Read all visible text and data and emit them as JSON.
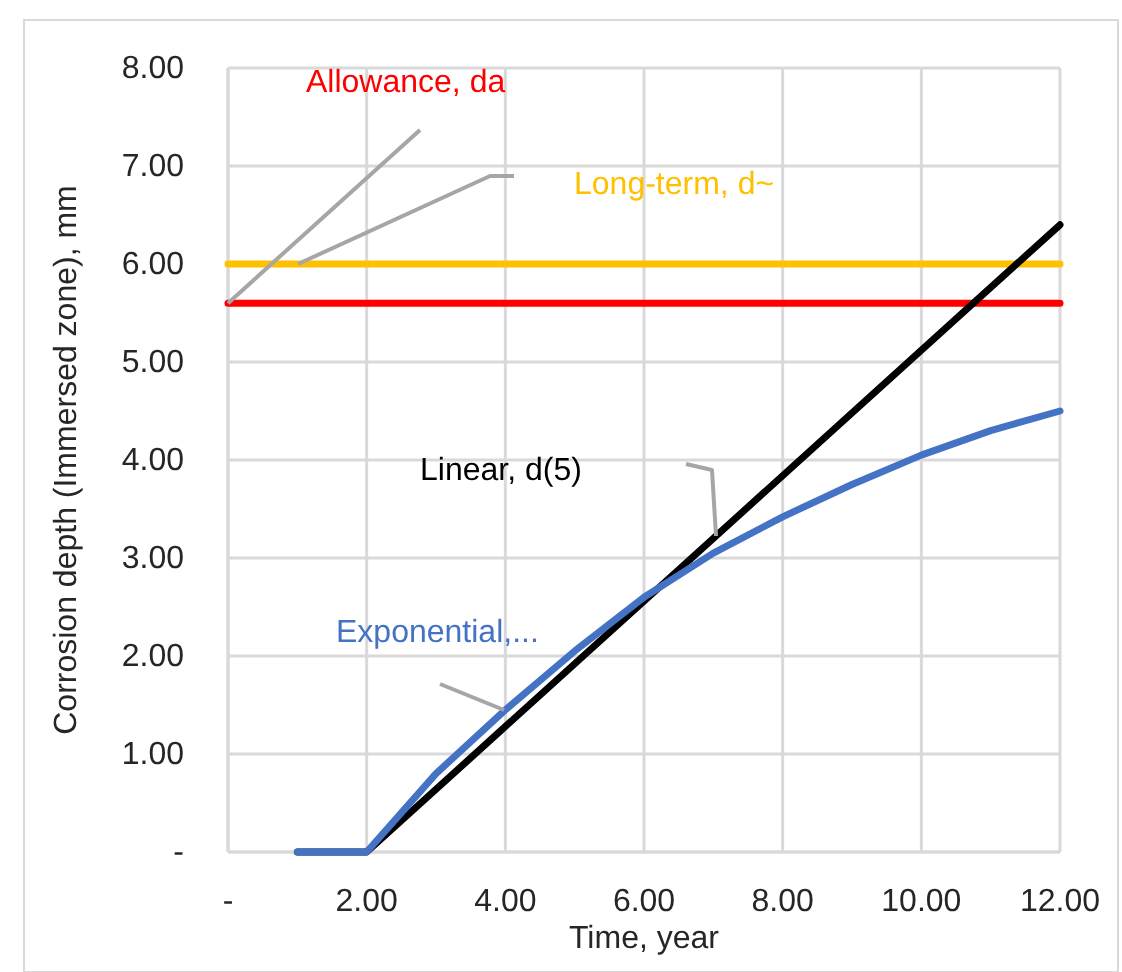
{
  "chart_data": {
    "type": "line",
    "xlabel": "Time, year",
    "ylabel": "Corrosion depth (Immersed zone), mm",
    "xlim": [
      0,
      12
    ],
    "ylim": [
      0,
      8
    ],
    "xticks": [
      {
        "value": 0,
        "label": "-"
      },
      {
        "value": 2,
        "label": "2.00"
      },
      {
        "value": 4,
        "label": "4.00"
      },
      {
        "value": 6,
        "label": "6.00"
      },
      {
        "value": 8,
        "label": "8.00"
      },
      {
        "value": 10,
        "label": "10.00"
      },
      {
        "value": 12,
        "label": "12.00"
      }
    ],
    "yticks": [
      {
        "value": 0,
        "label": "-"
      },
      {
        "value": 1,
        "label": "1.00"
      },
      {
        "value": 2,
        "label": "2.00"
      },
      {
        "value": 3,
        "label": "3.00"
      },
      {
        "value": 4,
        "label": "4.00"
      },
      {
        "value": 5,
        "label": "5.00"
      },
      {
        "value": 6,
        "label": "6.00"
      },
      {
        "value": 7,
        "label": "7.00"
      },
      {
        "value": 8,
        "label": "8.00"
      }
    ],
    "grid": true,
    "legend": false,
    "marker": "none",
    "line_style": "solid",
    "series": [
      {
        "name": "Allowance, da",
        "color": "#ff0000",
        "x": [
          0,
          12
        ],
        "values": [
          5.6,
          5.6
        ]
      },
      {
        "name": "Long-term, d~",
        "color": "#ffc000",
        "x": [
          0,
          12
        ],
        "values": [
          6.0,
          6.0
        ]
      },
      {
        "name": "Linear, d(5)",
        "color": "#000000",
        "x": [
          1,
          2,
          12
        ],
        "values": [
          0,
          0,
          6.4
        ]
      },
      {
        "name": "Exponential,...",
        "color": "#4472c4",
        "x": [
          1,
          2,
          3,
          4,
          5,
          6,
          7,
          8,
          9,
          10,
          11,
          12
        ],
        "values": [
          0,
          0,
          0.8,
          1.45,
          2.05,
          2.6,
          3.05,
          3.42,
          3.75,
          4.05,
          4.3,
          4.5
        ]
      }
    ]
  }
}
